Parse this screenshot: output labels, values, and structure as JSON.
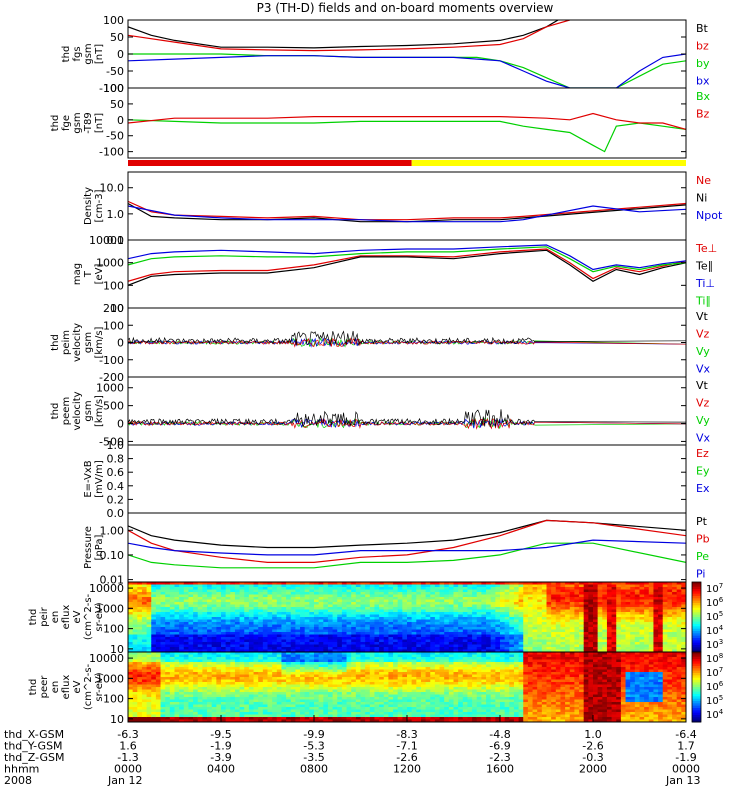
{
  "title": "P3 (TH-D) fields and on-board moments overview",
  "colors": {
    "black": "#000000",
    "red": "#e00000",
    "green": "#00d000",
    "blue": "#0000e0",
    "yellow": "#ffff00"
  },
  "panels": [
    {
      "ylabel": [
        "thd",
        "fgs",
        "gsm",
        "[nT]"
      ],
      "ticks": [
        {
          "v": 100,
          "t": "100"
        },
        {
          "v": 50,
          "t": "50"
        },
        {
          "v": 0,
          "t": "0"
        },
        {
          "v": -50,
          "t": "-50"
        },
        {
          "v": -100,
          "t": "-100"
        }
      ],
      "ylim": [
        -100,
        100
      ],
      "legend": [
        {
          "t": "Bt",
          "c": "black"
        },
        {
          "t": "bz",
          "c": "red"
        },
        {
          "t": "by",
          "c": "green"
        },
        {
          "t": "bx",
          "c": "blue"
        }
      ]
    },
    {
      "ylabel": [
        "thd",
        "fge",
        "gsm",
        "-T89",
        "[nT]"
      ],
      "ticks": [
        {
          "v": 100,
          "t": "100"
        },
        {
          "v": 50,
          "t": "50"
        },
        {
          "v": 0,
          "t": "0"
        },
        {
          "v": -50,
          "t": "-50"
        },
        {
          "v": -100,
          "t": "-100"
        }
      ],
      "ylim": [
        -120,
        100
      ],
      "legend": [
        {
          "t": "Bx",
          "c": "green"
        },
        {
          "t": "Bz",
          "c": "red"
        }
      ]
    },
    {
      "ylabel": [
        "Density",
        "[cm-3]"
      ],
      "ticks": [
        {
          "v": 10,
          "t": "10.0"
        },
        {
          "v": 1,
          "t": "1.0"
        },
        {
          "v": 0.1,
          "t": "0.1"
        }
      ],
      "ylim": [
        0.1,
        40
      ],
      "log": true,
      "legend": [
        {
          "t": "Ne",
          "c": "red"
        },
        {
          "t": "Ni",
          "c": "black"
        },
        {
          "t": "Npot",
          "c": "blue"
        }
      ]
    },
    {
      "ylabel": [
        "mag",
        "T",
        "[eV]"
      ],
      "ticks": [
        {
          "v": 10000,
          "t": "10000"
        },
        {
          "v": 1000,
          "t": "1000"
        },
        {
          "v": 100,
          "t": "100"
        },
        {
          "v": 10,
          "t": "10"
        }
      ],
      "ylim": [
        10,
        10000
      ],
      "log": true,
      "legend": [
        {
          "t": "Te⊥",
          "c": "red"
        },
        {
          "t": "Te∥",
          "c": "black"
        },
        {
          "t": "Ti⊥",
          "c": "blue"
        },
        {
          "t": "Ti∥",
          "c": "green"
        }
      ]
    },
    {
      "ylabel": [
        "thd",
        "peim",
        "velocity",
        "gsm",
        "[km/s]"
      ],
      "ticks": [
        {
          "v": 200,
          "t": "200"
        },
        {
          "v": 100,
          "t": "100"
        },
        {
          "v": 0,
          "t": "0"
        },
        {
          "v": -100,
          "t": "-100"
        },
        {
          "v": -200,
          "t": "-200"
        }
      ],
      "ylim": [
        -200,
        200
      ],
      "legend": [
        {
          "t": "Vt",
          "c": "black"
        },
        {
          "t": "Vz",
          "c": "red"
        },
        {
          "t": "Vy",
          "c": "green"
        },
        {
          "t": "Vx",
          "c": "blue"
        }
      ]
    },
    {
      "ylabel": [
        "thd",
        "peem",
        "velocity",
        "gsm",
        "[km/s]"
      ],
      "ticks": [
        {
          "v": 1000,
          "t": "1000"
        },
        {
          "v": 500,
          "t": "500"
        },
        {
          "v": 0,
          "t": "0"
        },
        {
          "v": -500,
          "t": "-500"
        }
      ],
      "ylim": [
        -600,
        1300
      ],
      "legend": [
        {
          "t": "Vt",
          "c": "black"
        },
        {
          "t": "Vz",
          "c": "red"
        },
        {
          "t": "Vy",
          "c": "green"
        },
        {
          "t": "Vx",
          "c": "blue"
        }
      ]
    },
    {
      "ylabel": [
        "E=-VxB",
        "[mV/m]"
      ],
      "ticks": [
        {
          "v": 1,
          "t": "1.0"
        },
        {
          "v": 0.8,
          "t": "0.8"
        },
        {
          "v": 0.6,
          "t": "0.6"
        },
        {
          "v": 0.4,
          "t": "0.4"
        },
        {
          "v": 0.2,
          "t": "0.2"
        },
        {
          "v": 0,
          "t": "0.0"
        }
      ],
      "ylim": [
        0,
        1
      ],
      "legend": [
        {
          "t": "Ez",
          "c": "red"
        },
        {
          "t": "Ey",
          "c": "green"
        },
        {
          "t": "Ex",
          "c": "blue"
        }
      ]
    },
    {
      "ylabel": [
        "Pressure",
        "[nPa]"
      ],
      "ticks": [
        {
          "v": 1,
          "t": "1.00"
        },
        {
          "v": 0.1,
          "t": "0.10"
        },
        {
          "v": 0.01,
          "t": "0.01"
        }
      ],
      "ylim": [
        0.008,
        5
      ],
      "log": true,
      "legend": [
        {
          "t": "Pt",
          "c": "black"
        },
        {
          "t": "Pb",
          "c": "red"
        },
        {
          "t": "Pe",
          "c": "green"
        },
        {
          "t": "Pi",
          "c": "blue"
        }
      ]
    },
    {
      "ylabel": [
        "thd",
        "peir",
        "en",
        "eflux",
        "eV",
        "(cm^2-s-",
        "sr-eV)"
      ],
      "ticks": [
        {
          "v": 10000,
          "t": "10000"
        },
        {
          "v": 1000,
          "t": "1000"
        },
        {
          "v": 100,
          "t": "100"
        },
        {
          "v": 10,
          "t": "10"
        }
      ],
      "ylim": [
        7,
        20000
      ],
      "log": true,
      "colorbar": [
        "10^7",
        "10^6",
        "10^5",
        "10^4",
        "10^3"
      ]
    },
    {
      "ylabel": [
        "thd",
        "peer",
        "en",
        "eflux",
        "eV",
        "(cm^2-s-",
        "sr-eV)"
      ],
      "ticks": [
        {
          "v": 10000,
          "t": "10000"
        },
        {
          "v": 1000,
          "t": "1000"
        },
        {
          "v": 100,
          "t": "100"
        },
        {
          "v": 10,
          "t": "10"
        }
      ],
      "ylim": [
        7,
        20000
      ],
      "log": true,
      "colorbar": [
        "10^8",
        "10^7",
        "10^6",
        "10^5",
        "10^4"
      ]
    }
  ],
  "bottom_rows": {
    "labels": [
      "thd_X-GSM",
      "thd_Y-GSM",
      "thd_Z-GSM",
      "hhmm",
      "2008"
    ],
    "columns": [
      [
        "-6.3",
        "1.6",
        "-1.3",
        "0000",
        "Jan 12"
      ],
      [
        "-9.5",
        "-1.9",
        "-3.9",
        "0400",
        ""
      ],
      [
        "-9.9",
        "-5.3",
        "-3.5",
        "0800",
        ""
      ],
      [
        "-8.3",
        "-7.1",
        "-2.6",
        "1200",
        ""
      ],
      [
        "-4.8",
        "-6.9",
        "-2.3",
        "1600",
        ""
      ],
      [
        "1.0",
        "-2.6",
        "-0.3",
        "2000",
        ""
      ],
      [
        "-6.4",
        "1.7",
        "-1.9",
        "0000",
        "Jan 13"
      ]
    ]
  },
  "chart_data": {
    "type": "line",
    "title": "P3 (TH-D) fields and on-board moments overview",
    "x_range": [
      "2008-01-12 00:00",
      "2008-01-13 00:00"
    ],
    "x_ticks": [
      "0000",
      "0400",
      "0800",
      "1200",
      "1600",
      "2000",
      "0000"
    ],
    "x_hours": [
      0,
      4,
      8,
      12,
      16,
      20,
      24
    ],
    "series": [
      {
        "name": "Bt",
        "panel": 0,
        "color": "black",
        "x": [
          0,
          1,
          2,
          4,
          6,
          8,
          10,
          12,
          14,
          16,
          17,
          18,
          18.5
        ],
        "values": [
          80,
          55,
          40,
          20,
          20,
          18,
          22,
          25,
          30,
          40,
          55,
          80,
          100
        ]
      },
      {
        "name": "bz",
        "panel": 0,
        "color": "red",
        "x": [
          0,
          2,
          4,
          6,
          8,
          10,
          12,
          14,
          16,
          17,
          18,
          19
        ],
        "values": [
          55,
          35,
          15,
          12,
          10,
          12,
          15,
          20,
          28,
          45,
          80,
          100
        ]
      },
      {
        "name": "by",
        "panel": 0,
        "color": "green",
        "x": [
          0,
          2,
          4,
          6,
          8,
          10,
          12,
          14,
          15,
          16,
          17,
          18,
          19,
          20,
          21,
          23,
          24
        ],
        "values": [
          0,
          0,
          0,
          -5,
          -5,
          -10,
          -10,
          -10,
          -10,
          -20,
          -40,
          -70,
          -100,
          -100,
          -100,
          -30,
          -20
        ]
      },
      {
        "name": "bx",
        "panel": 0,
        "color": "blue",
        "x": [
          0,
          2,
          4,
          6,
          8,
          10,
          12,
          14,
          16,
          17,
          18,
          19,
          20,
          21,
          22,
          23,
          24
        ],
        "values": [
          -20,
          -15,
          -10,
          -5,
          -5,
          -10,
          -10,
          -10,
          -20,
          -50,
          -80,
          -100,
          -100,
          -100,
          -50,
          -10,
          0
        ]
      },
      {
        "name": "Bx",
        "panel": 1,
        "color": "green",
        "x": [
          0,
          2,
          4,
          6,
          8,
          10,
          12,
          14,
          16,
          17,
          18,
          19,
          20,
          20.5,
          21,
          22,
          23,
          24
        ],
        "values": [
          0,
          -5,
          -10,
          -10,
          -10,
          -5,
          -5,
          -5,
          -5,
          -20,
          -30,
          -40,
          -80,
          -100,
          -20,
          -10,
          -20,
          -30
        ]
      },
      {
        "name": "Bz",
        "panel": 1,
        "color": "red",
        "x": [
          0,
          2,
          4,
          6,
          8,
          10,
          12,
          14,
          16,
          18,
          19,
          20,
          21,
          22,
          23,
          24
        ],
        "values": [
          -10,
          5,
          5,
          5,
          10,
          10,
          10,
          10,
          10,
          5,
          0,
          20,
          0,
          -10,
          -10,
          -30
        ]
      },
      {
        "name": "Ne",
        "panel": 2,
        "color": "red",
        "x": [
          0,
          1,
          2,
          4,
          6,
          8,
          10,
          12,
          14,
          16,
          17,
          24
        ],
        "values": [
          3,
          1.2,
          0.9,
          0.8,
          0.7,
          0.8,
          0.6,
          0.6,
          0.7,
          0.7,
          0.8,
          2.5
        ]
      },
      {
        "name": "Ni",
        "panel": 2,
        "color": "black",
        "x": [
          0,
          1,
          2,
          4,
          6,
          8,
          10,
          12,
          14,
          16,
          17,
          24
        ],
        "values": [
          2.5,
          0.8,
          0.7,
          0.6,
          0.6,
          0.7,
          0.5,
          0.5,
          0.6,
          0.6,
          0.7,
          2.2
        ]
      },
      {
        "name": "Npot",
        "panel": 2,
        "color": "blue",
        "x": [
          0,
          2,
          4,
          6,
          8,
          10,
          12,
          14,
          16,
          17,
          20,
          22,
          24
        ],
        "values": [
          2,
          0.9,
          0.7,
          0.6,
          0.6,
          0.6,
          0.5,
          0.5,
          0.5,
          0.6,
          2,
          1.2,
          1.5
        ]
      },
      {
        "name": "Te⊥",
        "panel": 3,
        "color": "red",
        "x": [
          0,
          1,
          2,
          4,
          6,
          8,
          10,
          12,
          14,
          16,
          18,
          19,
          20,
          21,
          22,
          23,
          24
        ],
        "values": [
          150,
          300,
          400,
          450,
          450,
          800,
          2000,
          2000,
          1800,
          3000,
          4000,
          1000,
          200,
          600,
          400,
          700,
          1200
        ]
      },
      {
        "name": "Te∥",
        "panel": 3,
        "color": "black",
        "x": [
          0,
          1,
          2,
          4,
          6,
          8,
          10,
          12,
          14,
          16,
          18,
          19,
          20,
          21,
          22,
          23,
          24
        ],
        "values": [
          100,
          250,
          300,
          350,
          350,
          600,
          1800,
          1800,
          1500,
          2500,
          3500,
          800,
          150,
          500,
          300,
          600,
          1000
        ]
      },
      {
        "name": "Ti⊥",
        "panel": 3,
        "color": "blue",
        "x": [
          0,
          1,
          2,
          4,
          6,
          8,
          10,
          12,
          14,
          16,
          18,
          19,
          20,
          21,
          22,
          23,
          24
        ],
        "values": [
          1500,
          2500,
          3000,
          3500,
          3000,
          2500,
          3500,
          4000,
          4000,
          5000,
          6000,
          2000,
          500,
          800,
          600,
          900,
          1200
        ]
      },
      {
        "name": "Ti∥",
        "panel": 3,
        "color": "green",
        "x": [
          0,
          1,
          2,
          4,
          6,
          8,
          10,
          12,
          14,
          16,
          18,
          19,
          20,
          21,
          22,
          23,
          24
        ],
        "values": [
          800,
          1500,
          1800,
          2000,
          1800,
          1800,
          2500,
          3000,
          3000,
          4000,
          5000,
          1500,
          400,
          700,
          500,
          800,
          1000
        ]
      },
      {
        "name": "Pt",
        "panel": 7,
        "color": "black",
        "x": [
          0,
          1,
          2,
          4,
          6,
          8,
          10,
          12,
          14,
          16,
          18,
          20,
          24
        ],
        "values": [
          1.5,
          0.6,
          0.4,
          0.25,
          0.2,
          0.2,
          0.25,
          0.3,
          0.4,
          0.8,
          2.5,
          2,
          1
        ]
      },
      {
        "name": "Pb",
        "panel": 7,
        "color": "red",
        "x": [
          0,
          1,
          2,
          4,
          6,
          8,
          10,
          12,
          14,
          16,
          18,
          20,
          24
        ],
        "values": [
          1,
          0.3,
          0.15,
          0.08,
          0.05,
          0.05,
          0.08,
          0.1,
          0.2,
          0.6,
          2.5,
          2,
          0.6
        ]
      },
      {
        "name": "Pe",
        "panel": 7,
        "color": "green",
        "x": [
          0,
          1,
          2,
          4,
          6,
          8,
          10,
          12,
          14,
          16,
          18,
          20,
          24
        ],
        "values": [
          0.1,
          0.05,
          0.04,
          0.03,
          0.03,
          0.03,
          0.05,
          0.05,
          0.06,
          0.1,
          0.3,
          0.3,
          0.05
        ]
      },
      {
        "name": "Pi",
        "panel": 7,
        "color": "blue",
        "x": [
          0,
          1,
          2,
          4,
          6,
          8,
          10,
          12,
          14,
          16,
          18,
          20,
          24
        ],
        "values": [
          0.3,
          0.2,
          0.15,
          0.12,
          0.1,
          0.1,
          0.15,
          0.15,
          0.15,
          0.15,
          0.2,
          0.4,
          0.3
        ]
      }
    ]
  }
}
